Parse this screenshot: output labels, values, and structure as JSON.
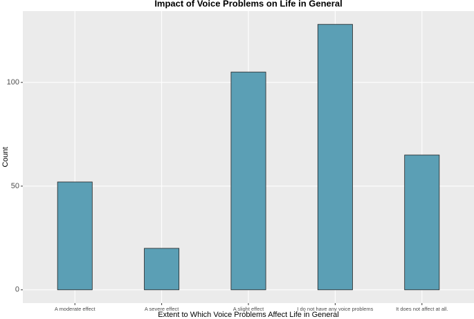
{
  "chart_data": {
    "type": "bar",
    "title": "Impact of Voice Problems on Life in General",
    "x_label": "Extent to Which Voice Problems Affect Life in General",
    "y_label": "Count",
    "categories": [
      "A moderate effect",
      "A severe effect",
      "A slight effect",
      "I do not have any voice problems",
      "It does not affect at all."
    ],
    "values": [
      52,
      20,
      105,
      128,
      65
    ],
    "color": "#5b9fb5",
    "ylim": [
      -6.4,
      134.4
    ],
    "yticks": [
      0,
      50,
      100
    ],
    "grid": true
  }
}
